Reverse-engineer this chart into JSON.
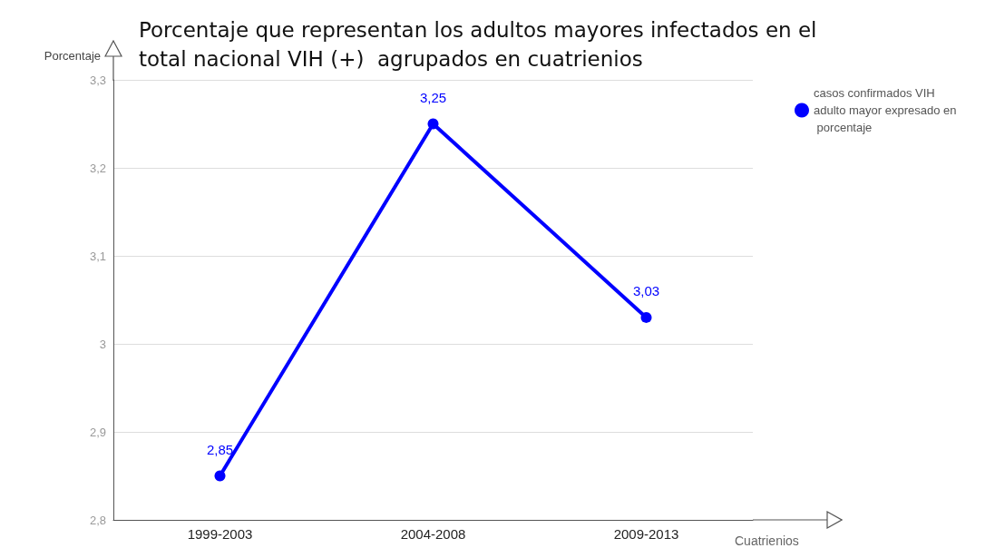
{
  "chart_data": {
    "type": "line",
    "title": "Porcentaje que representan los adultos mayores infectados en el total nacional VIH (+)  agrupados en cuatrienios",
    "xlabel": "Cuatrienios",
    "ylabel": "Porcentaje",
    "categories": [
      "1999-2003",
      "2004-2008",
      "2009-2013"
    ],
    "series": [
      {
        "name": "casos confirmados VIH adulto mayor expresado en porcentaje",
        "color": "#0000ff",
        "values": [
          2.85,
          3.25,
          3.03
        ],
        "value_labels": [
          "2,85",
          "3,25",
          "3,03"
        ]
      }
    ],
    "ylim": [
      2.8,
      3.3
    ],
    "yticks": [
      {
        "value": 2.8,
        "label": "2,8"
      },
      {
        "value": 2.9,
        "label": "2,9"
      },
      3,
      {
        "value": 3.1,
        "label": "3,1"
      },
      {
        "value": 3.2,
        "label": "3,2"
      },
      {
        "value": 3.3,
        "label": "3,3"
      }
    ],
    "grid": "y",
    "legend": "top right",
    "marker": "circle",
    "line_style": "solid"
  }
}
